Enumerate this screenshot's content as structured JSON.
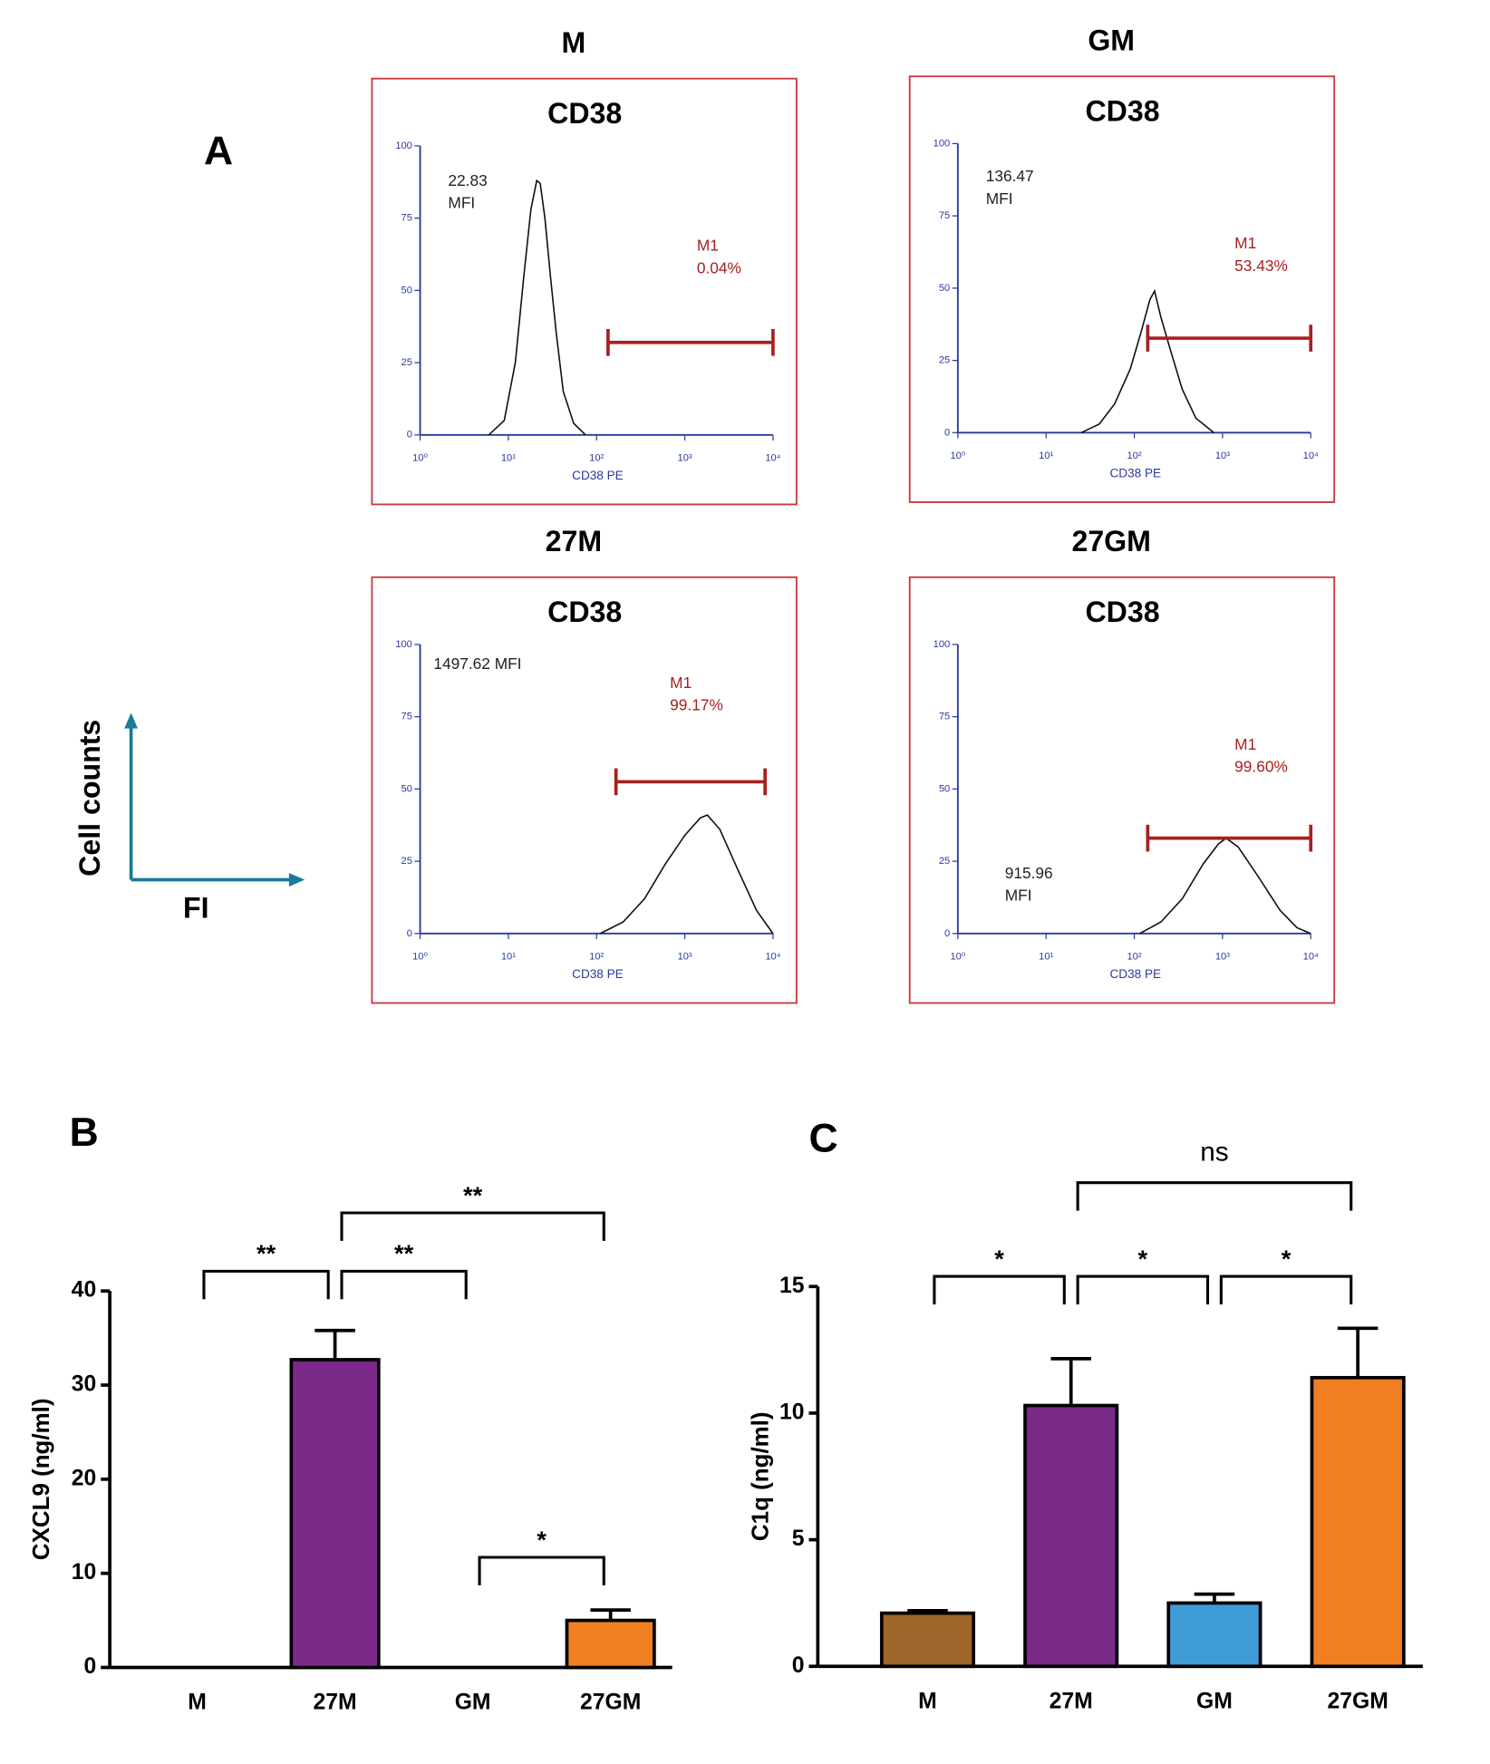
{
  "labels": {
    "panel_a": "A",
    "panel_b": "B",
    "panel_c": "C",
    "key_y": "Cell counts",
    "key_x": "FI"
  },
  "chart_data": [
    {
      "type": "line",
      "group": "M",
      "title": "CD38",
      "x_label": "CD38 PE",
      "x_scale": "log",
      "xlim": [
        1,
        10000
      ],
      "xticks": [
        {
          "value": 1,
          "label": "10⁰"
        },
        {
          "value": 10,
          "label": "10¹"
        },
        {
          "value": 100,
          "label": "10²"
        },
        {
          "value": 1000,
          "label": "10³"
        },
        {
          "value": 10000,
          "label": "10⁴"
        }
      ],
      "ylim": [
        0,
        100
      ],
      "yticks": [
        0,
        25,
        50,
        75,
        100
      ],
      "x": [
        6,
        9,
        12,
        15,
        18,
        21,
        23,
        26,
        30,
        35,
        42,
        55,
        75
      ],
      "values": [
        0,
        5,
        25,
        55,
        78,
        88,
        87,
        75,
        55,
        35,
        15,
        4,
        0
      ],
      "color": "#111111",
      "axis_color": "#2b3a9a",
      "box_color": "#c8393b",
      "mfi_text": [
        "22.83",
        "MFI"
      ],
      "gate": {
        "name": "M1",
        "label": "0.04%",
        "x": [
          135,
          10000
        ],
        "y": 32,
        "color": "#a8201f"
      }
    },
    {
      "type": "line",
      "group": "GM",
      "title": "CD38",
      "x_label": "CD38 PE",
      "x_scale": "log",
      "xlim": [
        1,
        10000
      ],
      "xticks": [
        {
          "value": 1,
          "label": "10⁰"
        },
        {
          "value": 10,
          "label": "10¹"
        },
        {
          "value": 100,
          "label": "10²"
        },
        {
          "value": 1000,
          "label": "10³"
        },
        {
          "value": 10000,
          "label": "10⁴"
        }
      ],
      "ylim": [
        0,
        100
      ],
      "yticks": [
        0,
        25,
        50,
        75,
        100
      ],
      "x": [
        25,
        40,
        60,
        90,
        120,
        150,
        170,
        200,
        260,
        350,
        500,
        800
      ],
      "values": [
        0,
        3,
        10,
        22,
        35,
        46,
        49,
        40,
        28,
        15,
        5,
        0
      ],
      "color": "#111111",
      "axis_color": "#2b3a9a",
      "box_color": "#c8393b",
      "mfi_text": [
        "136.47",
        "MFI"
      ],
      "gate": {
        "name": "M1",
        "label": "53.43%",
        "x": [
          142,
          10000
        ],
        "y": 32.7,
        "color": "#a8201f"
      }
    },
    {
      "type": "line",
      "group": "27M",
      "title": "CD38",
      "x_label": "CD38 PE",
      "x_scale": "log",
      "xlim": [
        1,
        10000
      ],
      "xticks": [
        {
          "value": 1,
          "label": "10⁰"
        },
        {
          "value": 10,
          "label": "10¹"
        },
        {
          "value": 100,
          "label": "10²"
        },
        {
          "value": 1000,
          "label": "10³"
        },
        {
          "value": 10000,
          "label": "10⁴"
        }
      ],
      "ylim": [
        0,
        100
      ],
      "yticks": [
        0,
        25,
        50,
        75,
        100
      ],
      "x": [
        110,
        200,
        350,
        600,
        1000,
        1500,
        1800,
        2500,
        4000,
        6500,
        10000
      ],
      "values": [
        0,
        4,
        12,
        24,
        34,
        40,
        41,
        36,
        22,
        8,
        0
      ],
      "color": "#111111",
      "axis_color": "#2b3a9a",
      "box_color": "#c8393b",
      "mfi_text": [
        "1497.62 MFI"
      ],
      "gate": {
        "name": "M1",
        "label": "99.17%",
        "x": [
          166,
          8130
        ],
        "y": 52.5,
        "color": "#a8201f"
      }
    },
    {
      "type": "line",
      "group": "27GM",
      "title": "CD38",
      "x_label": "CD38 PE",
      "x_scale": "log",
      "xlim": [
        1,
        10000
      ],
      "xticks": [
        {
          "value": 1,
          "label": "10⁰"
        },
        {
          "value": 10,
          "label": "10¹"
        },
        {
          "value": 100,
          "label": "10²"
        },
        {
          "value": 1000,
          "label": "10³"
        },
        {
          "value": 10000,
          "label": "10⁴"
        }
      ],
      "ylim": [
        0,
        100
      ],
      "yticks": [
        0,
        25,
        50,
        75,
        100
      ],
      "x": [
        115,
        200,
        350,
        600,
        900,
        1100,
        1500,
        2500,
        4500,
        7000,
        10000
      ],
      "values": [
        0,
        4,
        12,
        24,
        31,
        33,
        30,
        20,
        8,
        2,
        0
      ],
      "color": "#111111",
      "axis_color": "#2b3a9a",
      "box_color": "#c8393b",
      "mfi_text": [
        "915.96",
        "MFI"
      ],
      "gate": {
        "name": "M1",
        "label": "99.60%",
        "x": [
          142,
          10000
        ],
        "y": 33,
        "color": "#a8201f"
      }
    },
    {
      "type": "bar",
      "y_label": "CXCL9 (ng/ml)",
      "categories": [
        "M",
        "27M",
        "GM",
        "27GM"
      ],
      "values": [
        0,
        32.7,
        0,
        5.0
      ],
      "errors": [
        null,
        3.1,
        null,
        1.1
      ],
      "colors": [
        "#a0652a",
        "#7b2a8a",
        "#3e9bd6",
        "#f07f22"
      ],
      "ylim": [
        0,
        40
      ],
      "yticks": [
        0,
        10,
        20,
        30,
        40
      ],
      "brackets": [
        {
          "from": 0,
          "to": 1,
          "y": 42.1,
          "label": "**"
        },
        {
          "from": 1,
          "to": 2,
          "y": 42.1,
          "label": "**"
        },
        {
          "from": 1,
          "to": 3,
          "y": 48.3,
          "label": "**"
        },
        {
          "from": 2,
          "to": 3,
          "y": 11.7,
          "label": "*"
        }
      ]
    },
    {
      "type": "bar",
      "y_label": "C1q (ng/ml)",
      "categories": [
        "M",
        "27M",
        "GM",
        "27GM"
      ],
      "values": [
        2.1,
        10.3,
        2.5,
        11.4
      ],
      "errors": [
        0.1,
        1.85,
        0.35,
        1.95
      ],
      "colors": [
        "#a0652a",
        "#7b2a8a",
        "#3e9bd6",
        "#f07f22"
      ],
      "ylim": [
        0,
        15
      ],
      "yticks": [
        0,
        5,
        10,
        15
      ],
      "brackets": [
        {
          "from": 0,
          "to": 1,
          "y": 15.4,
          "label": "*"
        },
        {
          "from": 1,
          "to": 2,
          "y": 15.4,
          "label": "*"
        },
        {
          "from": 2,
          "to": 3,
          "y": 15.4,
          "label": "*"
        },
        {
          "from": 1,
          "to": 3,
          "y": 19.1,
          "label": "ns"
        }
      ]
    }
  ]
}
